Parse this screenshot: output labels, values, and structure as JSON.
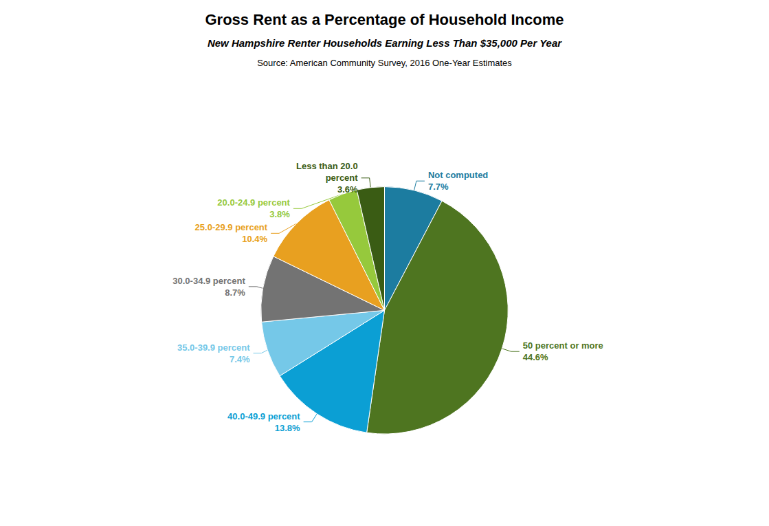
{
  "chart_data": {
    "type": "pie",
    "title": "Gross Rent as a Percentage of Household Income",
    "subtitle": "New Hampshire Renter Households Earning Less Than $35,000 Per Year",
    "source": "Source: American Community Survey, 2016 One-Year Estimates",
    "categories": [
      "Not computed",
      "50 percent or more",
      "40.0-49.9 percent",
      "35.0-39.9 percent",
      "30.0-34.9 percent",
      "25.0-29.9 percent",
      "20.0-24.9 percent",
      "Less than 20.0\npercent"
    ],
    "values": [
      7.7,
      44.6,
      13.8,
      7.4,
      8.7,
      10.4,
      3.8,
      3.6
    ],
    "value_labels": [
      "7.7%",
      "44.6%",
      "13.8%",
      "7.4%",
      "8.7%",
      "10.4%",
      "3.8%",
      "3.6%"
    ],
    "colors": [
      "#1c7ca0",
      "#4e7520",
      "#0b9fd4",
      "#75c8e8",
      "#737373",
      "#e8a020",
      "#96c93c",
      "#3a5c14"
    ],
    "data_labels": true
  }
}
